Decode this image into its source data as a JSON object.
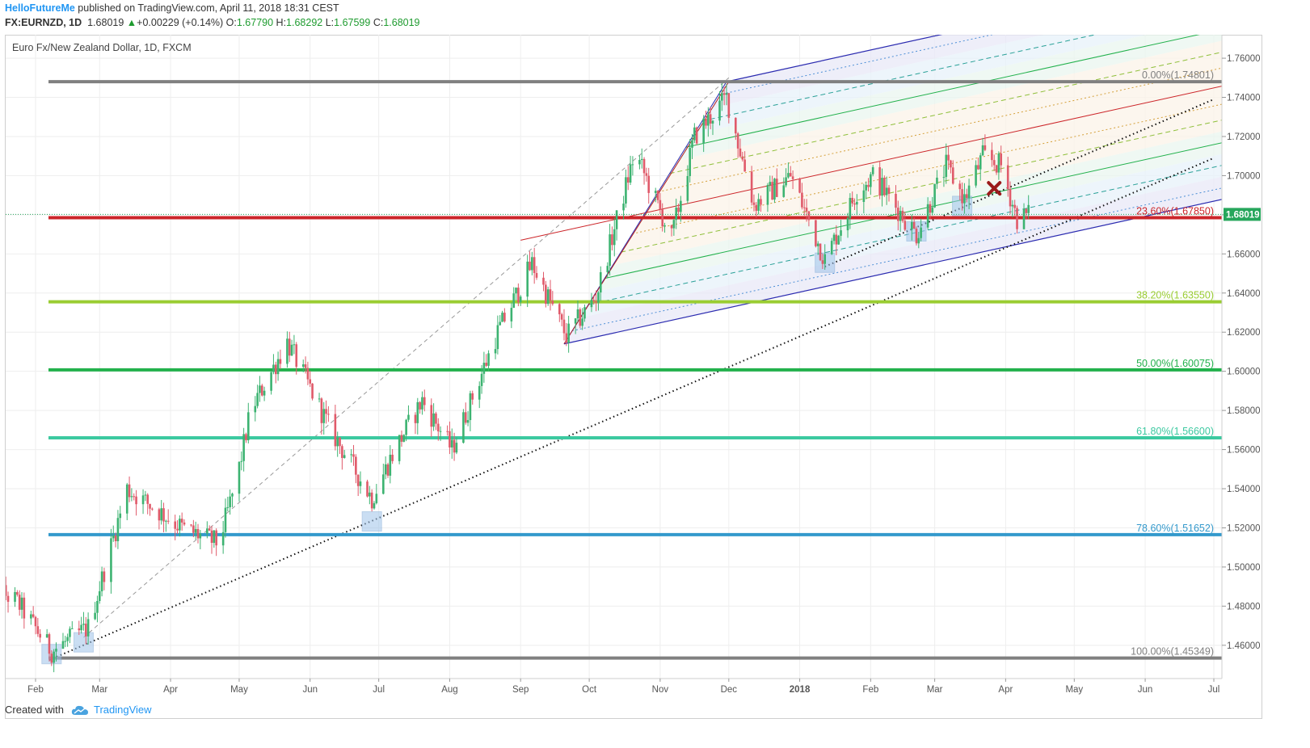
{
  "header": {
    "author": "HelloFutureMe",
    "published": "published on TradingView.com, April 11, 2018 18:31 CEST",
    "symbol": "FX:EURNZD, 1D",
    "last": "1.68019",
    "change": "+0.00229 (+0.14%)",
    "open_label": "O:",
    "open": "1.67790",
    "high_label": "H:",
    "high": "1.68292",
    "low_label": "L:",
    "low": "1.67599",
    "close_label": "C:",
    "close": "1.68019"
  },
  "chart_title": "Euro Fx/New Zealand Dollar, 1D, FXCM",
  "footer": {
    "created_with": "Created with",
    "brand": "TradingView"
  },
  "colors": {
    "up": "#3cb371",
    "down": "#e05a6a",
    "fib_gray": "#808080",
    "fib_red": "#cc2529",
    "fib_lime": "#9acd32",
    "fib_green": "#22b14c",
    "fib_teal": "#3cc9a0",
    "fib_blue": "#3399cc",
    "pitchfork": "#2b2bb0",
    "last_price_bg": "#26a65b"
  },
  "chart_data": {
    "type": "candlestick",
    "ylim": [
      1.443,
      1.772
    ],
    "y_ticks": [
      "1.46000",
      "1.48000",
      "1.50000",
      "1.52000",
      "1.54000",
      "1.56000",
      "1.58000",
      "1.60000",
      "1.62000",
      "1.64000",
      "1.66000",
      "1.68000",
      "1.70000",
      "1.72000",
      "1.74000",
      "1.76000"
    ],
    "x_ticks": [
      {
        "label": "Feb",
        "date": "2017-02-01"
      },
      {
        "label": "Mar",
        "date": "2017-03-01"
      },
      {
        "label": "Apr",
        "date": "2017-04-01"
      },
      {
        "label": "May",
        "date": "2017-05-01"
      },
      {
        "label": "Jun",
        "date": "2017-06-01"
      },
      {
        "label": "Jul",
        "date": "2017-07-01"
      },
      {
        "label": "Aug",
        "date": "2017-08-01"
      },
      {
        "label": "Sep",
        "date": "2017-09-01"
      },
      {
        "label": "Oct",
        "date": "2017-10-01"
      },
      {
        "label": "Nov",
        "date": "2017-11-01"
      },
      {
        "label": "Dec",
        "date": "2017-12-01"
      },
      {
        "label": "2018",
        "date": "2018-01-01"
      },
      {
        "label": "Feb",
        "date": "2018-02-01"
      },
      {
        "label": "Mar",
        "date": "2018-03-01"
      },
      {
        "label": "Apr",
        "date": "2018-04-01"
      },
      {
        "label": "May",
        "date": "2018-05-01"
      },
      {
        "label": "Jun",
        "date": "2018-06-01"
      },
      {
        "label": "Jul",
        "date": "2018-07-01"
      }
    ],
    "anchors": [
      {
        "date": "2017-01-10",
        "close": 1.492
      },
      {
        "date": "2017-01-24",
        "close": 1.482
      },
      {
        "date": "2017-02-08",
        "close": 1.457
      },
      {
        "date": "2017-02-24",
        "close": 1.469
      },
      {
        "date": "2017-03-13",
        "close": 1.54
      },
      {
        "date": "2017-04-06",
        "close": 1.52
      },
      {
        "date": "2017-04-22",
        "close": 1.512
      },
      {
        "date": "2017-04-30",
        "close": 1.545
      },
      {
        "date": "2017-05-06",
        "close": 1.58
      },
      {
        "date": "2017-05-22",
        "close": 1.615
      },
      {
        "date": "2017-06-10",
        "close": 1.57
      },
      {
        "date": "2017-06-28",
        "close": 1.535
      },
      {
        "date": "2017-07-08",
        "close": 1.56
      },
      {
        "date": "2017-07-20",
        "close": 1.585
      },
      {
        "date": "2017-08-02",
        "close": 1.56
      },
      {
        "date": "2017-08-22",
        "close": 1.62
      },
      {
        "date": "2017-09-06",
        "close": 1.655
      },
      {
        "date": "2017-09-21",
        "close": 1.618
      },
      {
        "date": "2017-10-04",
        "close": 1.638
      },
      {
        "date": "2017-10-21",
        "close": 1.712
      },
      {
        "date": "2017-11-06",
        "close": 1.668
      },
      {
        "date": "2017-11-16",
        "close": 1.72
      },
      {
        "date": "2017-11-30",
        "close": 1.74
      },
      {
        "date": "2017-12-12",
        "close": 1.685
      },
      {
        "date": "2017-12-28",
        "close": 1.7
      },
      {
        "date": "2018-01-12",
        "close": 1.657
      },
      {
        "date": "2018-01-26",
        "close": 1.692
      },
      {
        "date": "2018-02-02",
        "close": 1.7
      },
      {
        "date": "2018-02-21",
        "close": 1.67
      },
      {
        "date": "2018-03-06",
        "close": 1.705
      },
      {
        "date": "2018-03-14",
        "close": 1.688
      },
      {
        "date": "2018-03-22",
        "close": 1.71
      },
      {
        "date": "2018-03-30",
        "close": 1.705
      },
      {
        "date": "2018-04-06",
        "close": 1.678
      },
      {
        "date": "2018-04-11",
        "close": 1.68
      }
    ],
    "fib_levels": [
      {
        "label": "0.00%(1.74801)",
        "price": 1.74801,
        "color": "#808080"
      },
      {
        "label": "23.60%(1.67850)",
        "price": 1.6785,
        "color": "#cc2529"
      },
      {
        "label": "38.20%(1.63550)",
        "price": 1.6355,
        "color": "#9acd32"
      },
      {
        "label": "50.00%(1.60075)",
        "price": 1.60075,
        "color": "#22b14c"
      },
      {
        "label": "61.80%(1.56600)",
        "price": 1.566,
        "color": "#3cc9a0"
      },
      {
        "label": "78.60%(1.51652)",
        "price": 1.51652,
        "color": "#3399cc"
      },
      {
        "label": "100.00%(1.45349)",
        "price": 1.45349,
        "color": "#808080"
      }
    ],
    "pitchfork": {
      "p0": {
        "date": "2017-09-01",
        "price": 1.667
      },
      "p1": {
        "date": "2017-11-30",
        "price": 1.748
      },
      "p2": {
        "date": "2017-09-20",
        "price": 1.614
      }
    },
    "trendlines": [
      {
        "from": {
          "date": "2017-02-07",
          "price": 1.4525
        },
        "to": {
          "date": "2018-07-01",
          "price": 1.709
        },
        "style": "dotted",
        "color": "#111111"
      },
      {
        "from": {
          "date": "2018-01-12",
          "price": 1.6535
        },
        "to": {
          "date": "2018-07-01",
          "price": 1.739
        },
        "style": "dotted",
        "color": "#111111"
      },
      {
        "from": {
          "date": "2017-02-22",
          "price": 1.464
        },
        "to": {
          "date": "2017-12-01",
          "price": 1.75
        },
        "style": "dashed",
        "color": "#999999"
      },
      {
        "from": {
          "date": "2017-09-20",
          "price": 1.614
        },
        "to": {
          "date": "2017-12-01",
          "price": 1.748
        },
        "style": "solid",
        "color": "#b22222"
      }
    ],
    "highlight_points": [
      {
        "date": "2017-02-08",
        "price": 1.4555
      },
      {
        "date": "2017-02-22",
        "price": 1.4615
      },
      {
        "date": "2017-06-28",
        "price": 1.5233
      },
      {
        "date": "2018-01-12",
        "price": 1.6555
      },
      {
        "date": "2018-02-21",
        "price": 1.6715
      },
      {
        "date": "2018-03-13",
        "price": 1.6845
      }
    ],
    "cross_marker": {
      "date": "2018-03-27",
      "price": 1.6935
    },
    "last_price": "1.68019"
  }
}
